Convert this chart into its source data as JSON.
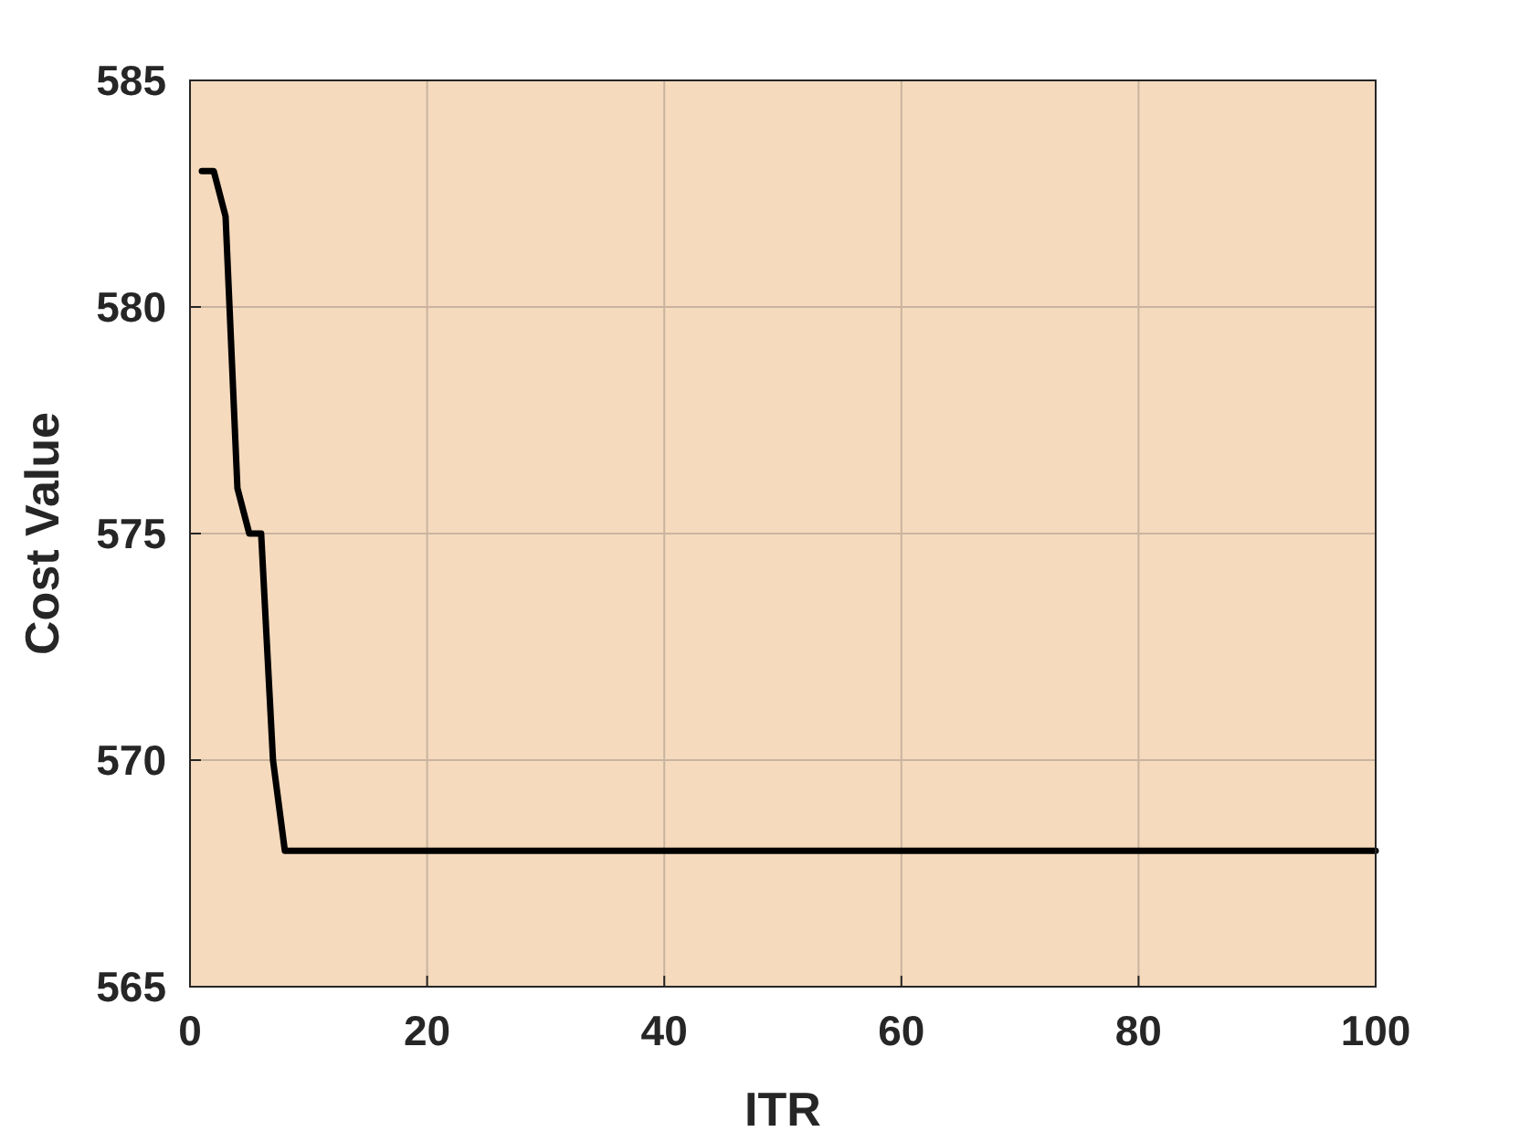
{
  "chart_data": {
    "type": "line",
    "xlabel": "ITR",
    "ylabel": "Cost Value",
    "series": [
      {
        "color": "#000000",
        "x": [
          1,
          2,
          3,
          4,
          5,
          6,
          7,
          8,
          100
        ],
        "values": [
          583,
          583,
          582,
          576,
          575,
          575,
          570,
          568,
          568
        ]
      }
    ],
    "xlim": [
      0,
      100
    ],
    "xticks": [
      0,
      20,
      40,
      60,
      80,
      100
    ],
    "ylim": [
      565,
      585
    ],
    "yticks": [
      565,
      570,
      575,
      580,
      585
    ],
    "grid": true,
    "marker": "none",
    "line_style": "solid"
  }
}
